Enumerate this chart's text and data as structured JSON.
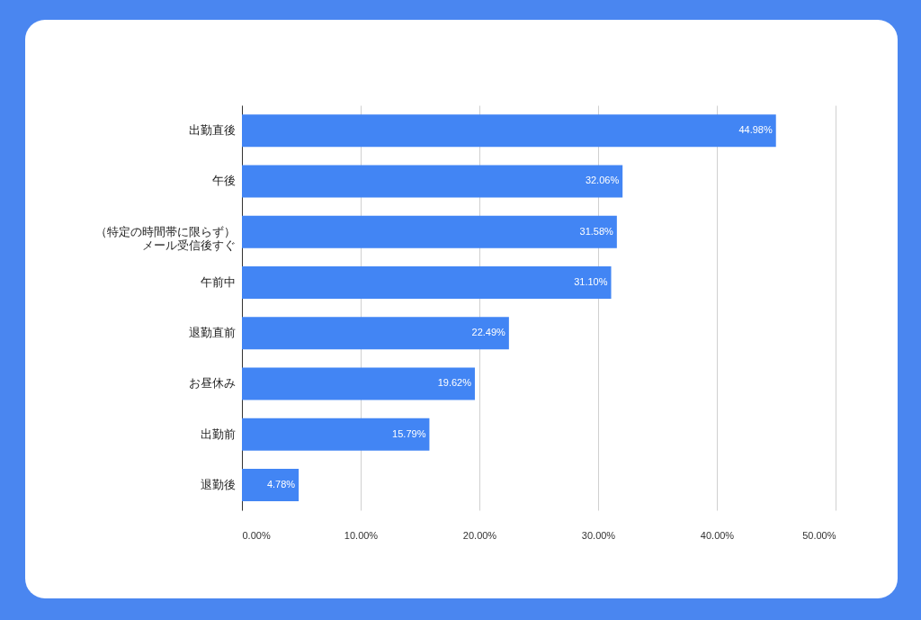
{
  "chart_data": {
    "type": "bar",
    "orientation": "horizontal",
    "categories": [
      "出勤直後",
      "午後",
      "（特定の時間帯に限らず）メール受信後すぐ",
      "午前中",
      "退勤直前",
      "お昼休み",
      "出勤前",
      "退勤後"
    ],
    "values": [
      44.98,
      32.06,
      31.58,
      31.1,
      22.49,
      19.62,
      15.79,
      4.78
    ],
    "value_labels": [
      "44.98%",
      "32.06%",
      "31.58%",
      "31.10%",
      "22.49%",
      "19.62%",
      "15.79%",
      "4.78%"
    ],
    "color": "#4285f4",
    "xlim": [
      0,
      50
    ],
    "xticks": [
      {
        "value": 0,
        "label": "0.00%"
      },
      {
        "value": 10,
        "label": "10.00%"
      },
      {
        "value": 20,
        "label": "20.00%"
      },
      {
        "value": 30,
        "label": "30.00%"
      },
      {
        "value": 40,
        "label": "40.00%"
      },
      {
        "value": 50,
        "label": "50.00%"
      }
    ],
    "grid": "x"
  }
}
